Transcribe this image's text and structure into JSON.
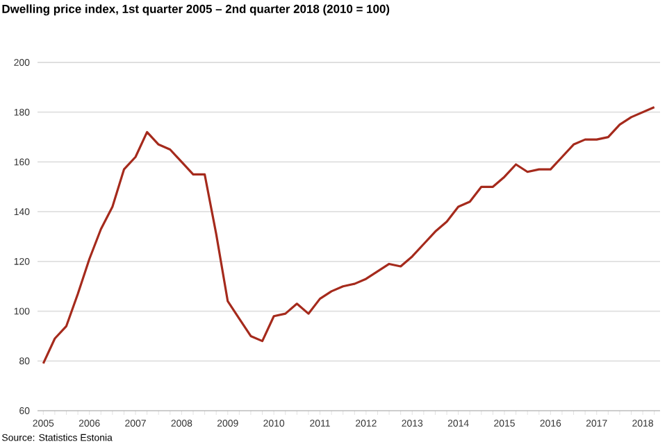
{
  "chart_data": {
    "type": "line",
    "title": "Dwelling price index, 1st quarter 2005 – 2nd quarter 2018 (2010 = 100)",
    "categories": [
      "2005",
      null,
      null,
      null,
      "2006",
      null,
      null,
      null,
      "2007",
      null,
      null,
      null,
      "2008",
      null,
      null,
      null,
      "2009",
      null,
      null,
      null,
      "2010",
      null,
      null,
      null,
      "2011",
      null,
      null,
      null,
      "2012",
      null,
      null,
      null,
      "2013",
      null,
      null,
      null,
      "2014",
      null,
      null,
      null,
      "2015",
      null,
      null,
      null,
      "2016",
      null,
      null,
      null,
      "2017",
      null,
      null,
      null,
      "2018",
      null
    ],
    "values": [
      79,
      89,
      94,
      107,
      121,
      133,
      142,
      157,
      162,
      172,
      167,
      165,
      160,
      155,
      155,
      131,
      104,
      97,
      90,
      88,
      98,
      99,
      103,
      99,
      105,
      108,
      110,
      111,
      113,
      116,
      119,
      118,
      122,
      127,
      132,
      136,
      142,
      144,
      150,
      150,
      154,
      159,
      156,
      157,
      157,
      162,
      167,
      169,
      169,
      170,
      175,
      178,
      180,
      182
    ],
    "color": "#a52a1c",
    "ylim": [
      60,
      200
    ],
    "yticks": [
      60,
      80,
      100,
      120,
      140,
      160,
      180,
      200
    ],
    "grid": "y",
    "annotations": [
      "Source: Statistics Estonia"
    ]
  }
}
